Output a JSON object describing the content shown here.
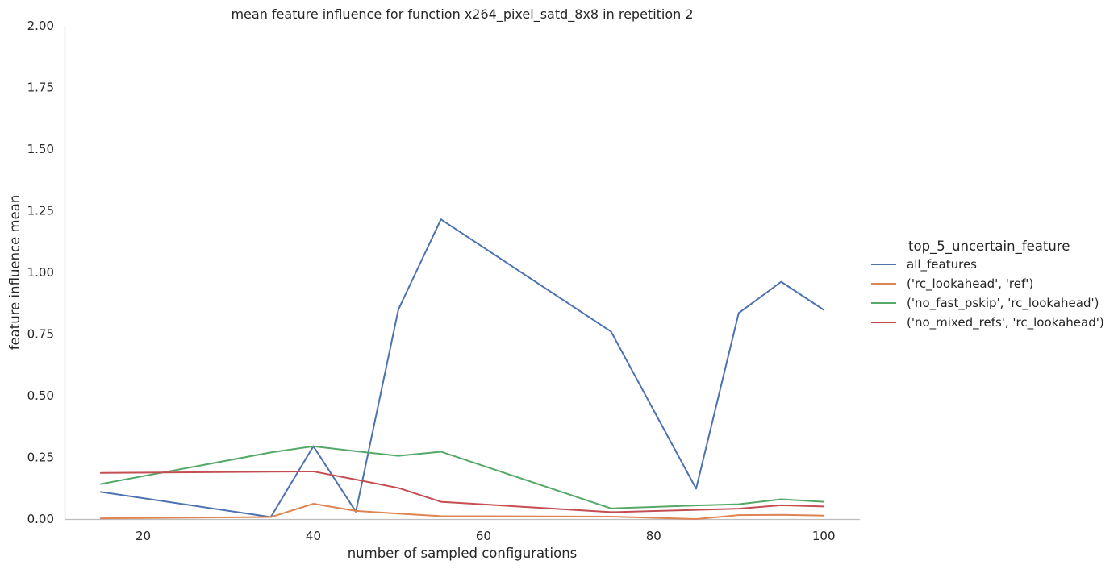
{
  "chart_data": {
    "type": "line",
    "title": "mean feature influence for function x264_pixel_satd_8x8 in repetition 2",
    "xlabel": "number of sampled configurations",
    "ylabel": "feature influence mean",
    "xlim": [
      10.75,
      104.25
    ],
    "ylim": [
      0,
      2.0
    ],
    "xticks": [
      20,
      40,
      60,
      80,
      100
    ],
    "yticks": [
      0.0,
      0.25,
      0.5,
      0.75,
      1.0,
      1.25,
      1.5,
      1.75,
      2.0
    ],
    "ytick_labels": [
      "0.00",
      "0.25",
      "0.50",
      "0.75",
      "1.00",
      "1.25",
      "1.50",
      "1.75",
      "2.00"
    ],
    "grid": false,
    "legend": {
      "title": "top_5_uncertain_feature",
      "placement": "right"
    },
    "series": [
      {
        "name": "all_features",
        "color": "#4c72b0",
        "x": [
          15,
          35,
          40,
          45,
          50,
          55,
          75,
          85,
          90,
          95,
          100
        ],
        "y": [
          0.11,
          0.008,
          0.295,
          0.03,
          0.85,
          1.215,
          0.76,
          0.123,
          0.835,
          0.962,
          0.848
        ]
      },
      {
        "name": "('rc_lookahead', 'ref')",
        "color": "#dd8452",
        "x": [
          15,
          35,
          40,
          45,
          50,
          55,
          75,
          85,
          90,
          95,
          100
        ],
        "y": [
          0.003,
          0.008,
          0.062,
          0.033,
          0.022,
          0.012,
          0.01,
          0.0,
          0.016,
          0.017,
          0.014
        ]
      },
      {
        "name": "('no_fast_pskip', 'rc_lookahead')",
        "color": "#55a868",
        "x": [
          15,
          35,
          40,
          45,
          50,
          55,
          75,
          85,
          90,
          95,
          100
        ],
        "y": [
          0.142,
          0.27,
          0.295,
          0.275,
          0.256,
          0.273,
          0.043,
          0.055,
          0.06,
          0.08,
          0.07
        ]
      },
      {
        "name": "('no_mixed_refs', 'rc_lookahead')",
        "color": "#c44e52",
        "x": [
          15,
          35,
          40,
          45,
          50,
          55,
          75,
          85,
          90,
          95,
          100
        ],
        "y": [
          0.187,
          0.192,
          0.193,
          0.16,
          0.126,
          0.07,
          0.028,
          0.037,
          0.042,
          0.056,
          0.051
        ]
      }
    ]
  }
}
